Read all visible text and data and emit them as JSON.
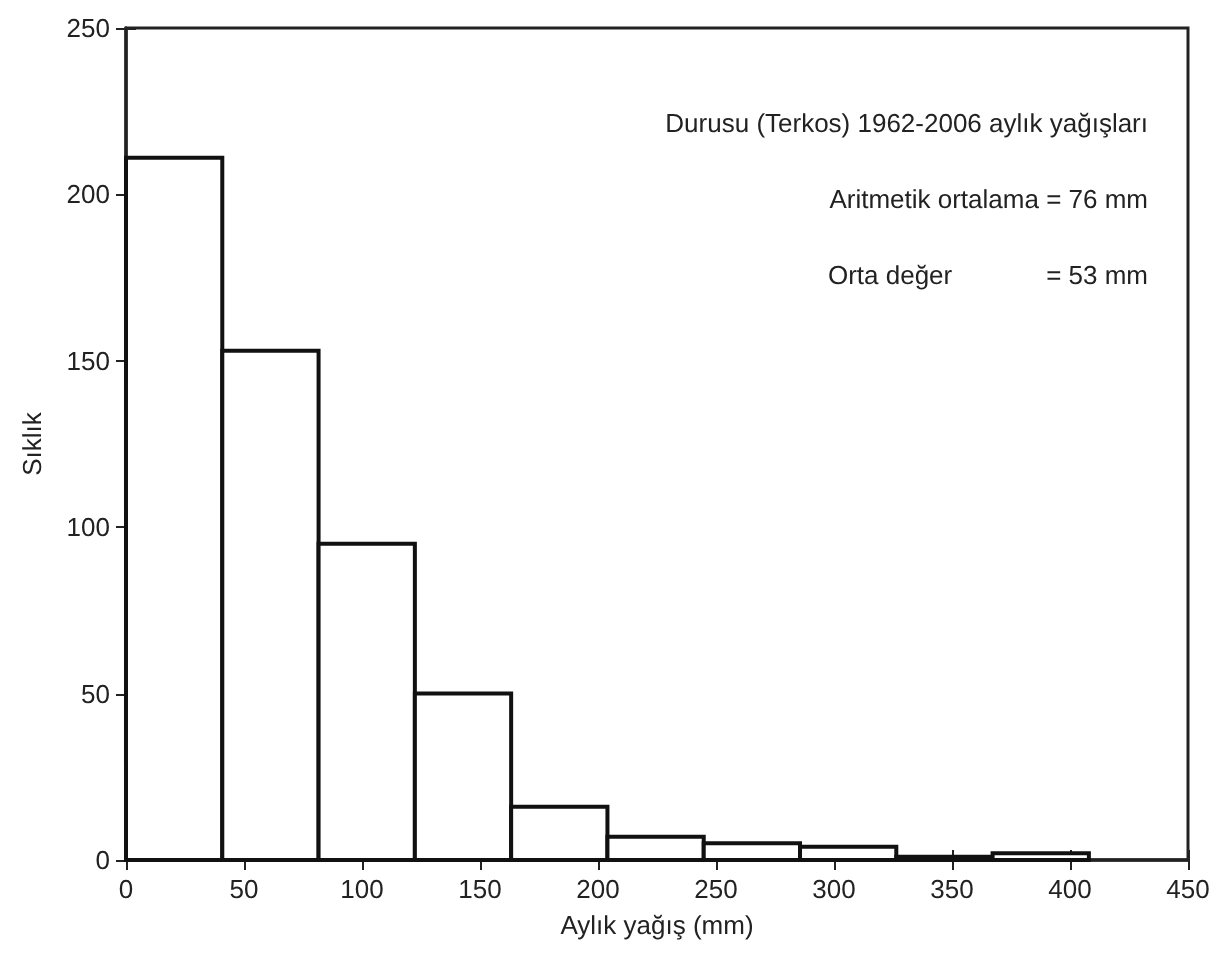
{
  "chart_data": {
    "type": "histogram",
    "xlabel": "Aylık yağış (mm)",
    "ylabel": "Sıklık",
    "annotations": [
      "Durusu (Terkos) 1962-2006 aylık yağışları",
      "Aritmetik ortalama = 76 mm",
      "Orta değer             = 53 mm"
    ],
    "bins": [
      0,
      40.8,
      81.6,
      122.4,
      163.2,
      204,
      244.8,
      285.6,
      326.4,
      367.2,
      408
    ],
    "values": [
      211,
      153,
      95,
      50,
      16,
      7,
      5,
      4,
      1,
      2
    ],
    "color": "#ffffff",
    "xlim": [
      0,
      450
    ],
    "xticks": [
      0,
      50,
      100,
      150,
      200,
      250,
      300,
      350,
      400,
      450
    ],
    "ylim": [
      0,
      250
    ],
    "yticks": [
      0,
      50,
      100,
      150,
      200,
      250
    ],
    "grid": false
  }
}
